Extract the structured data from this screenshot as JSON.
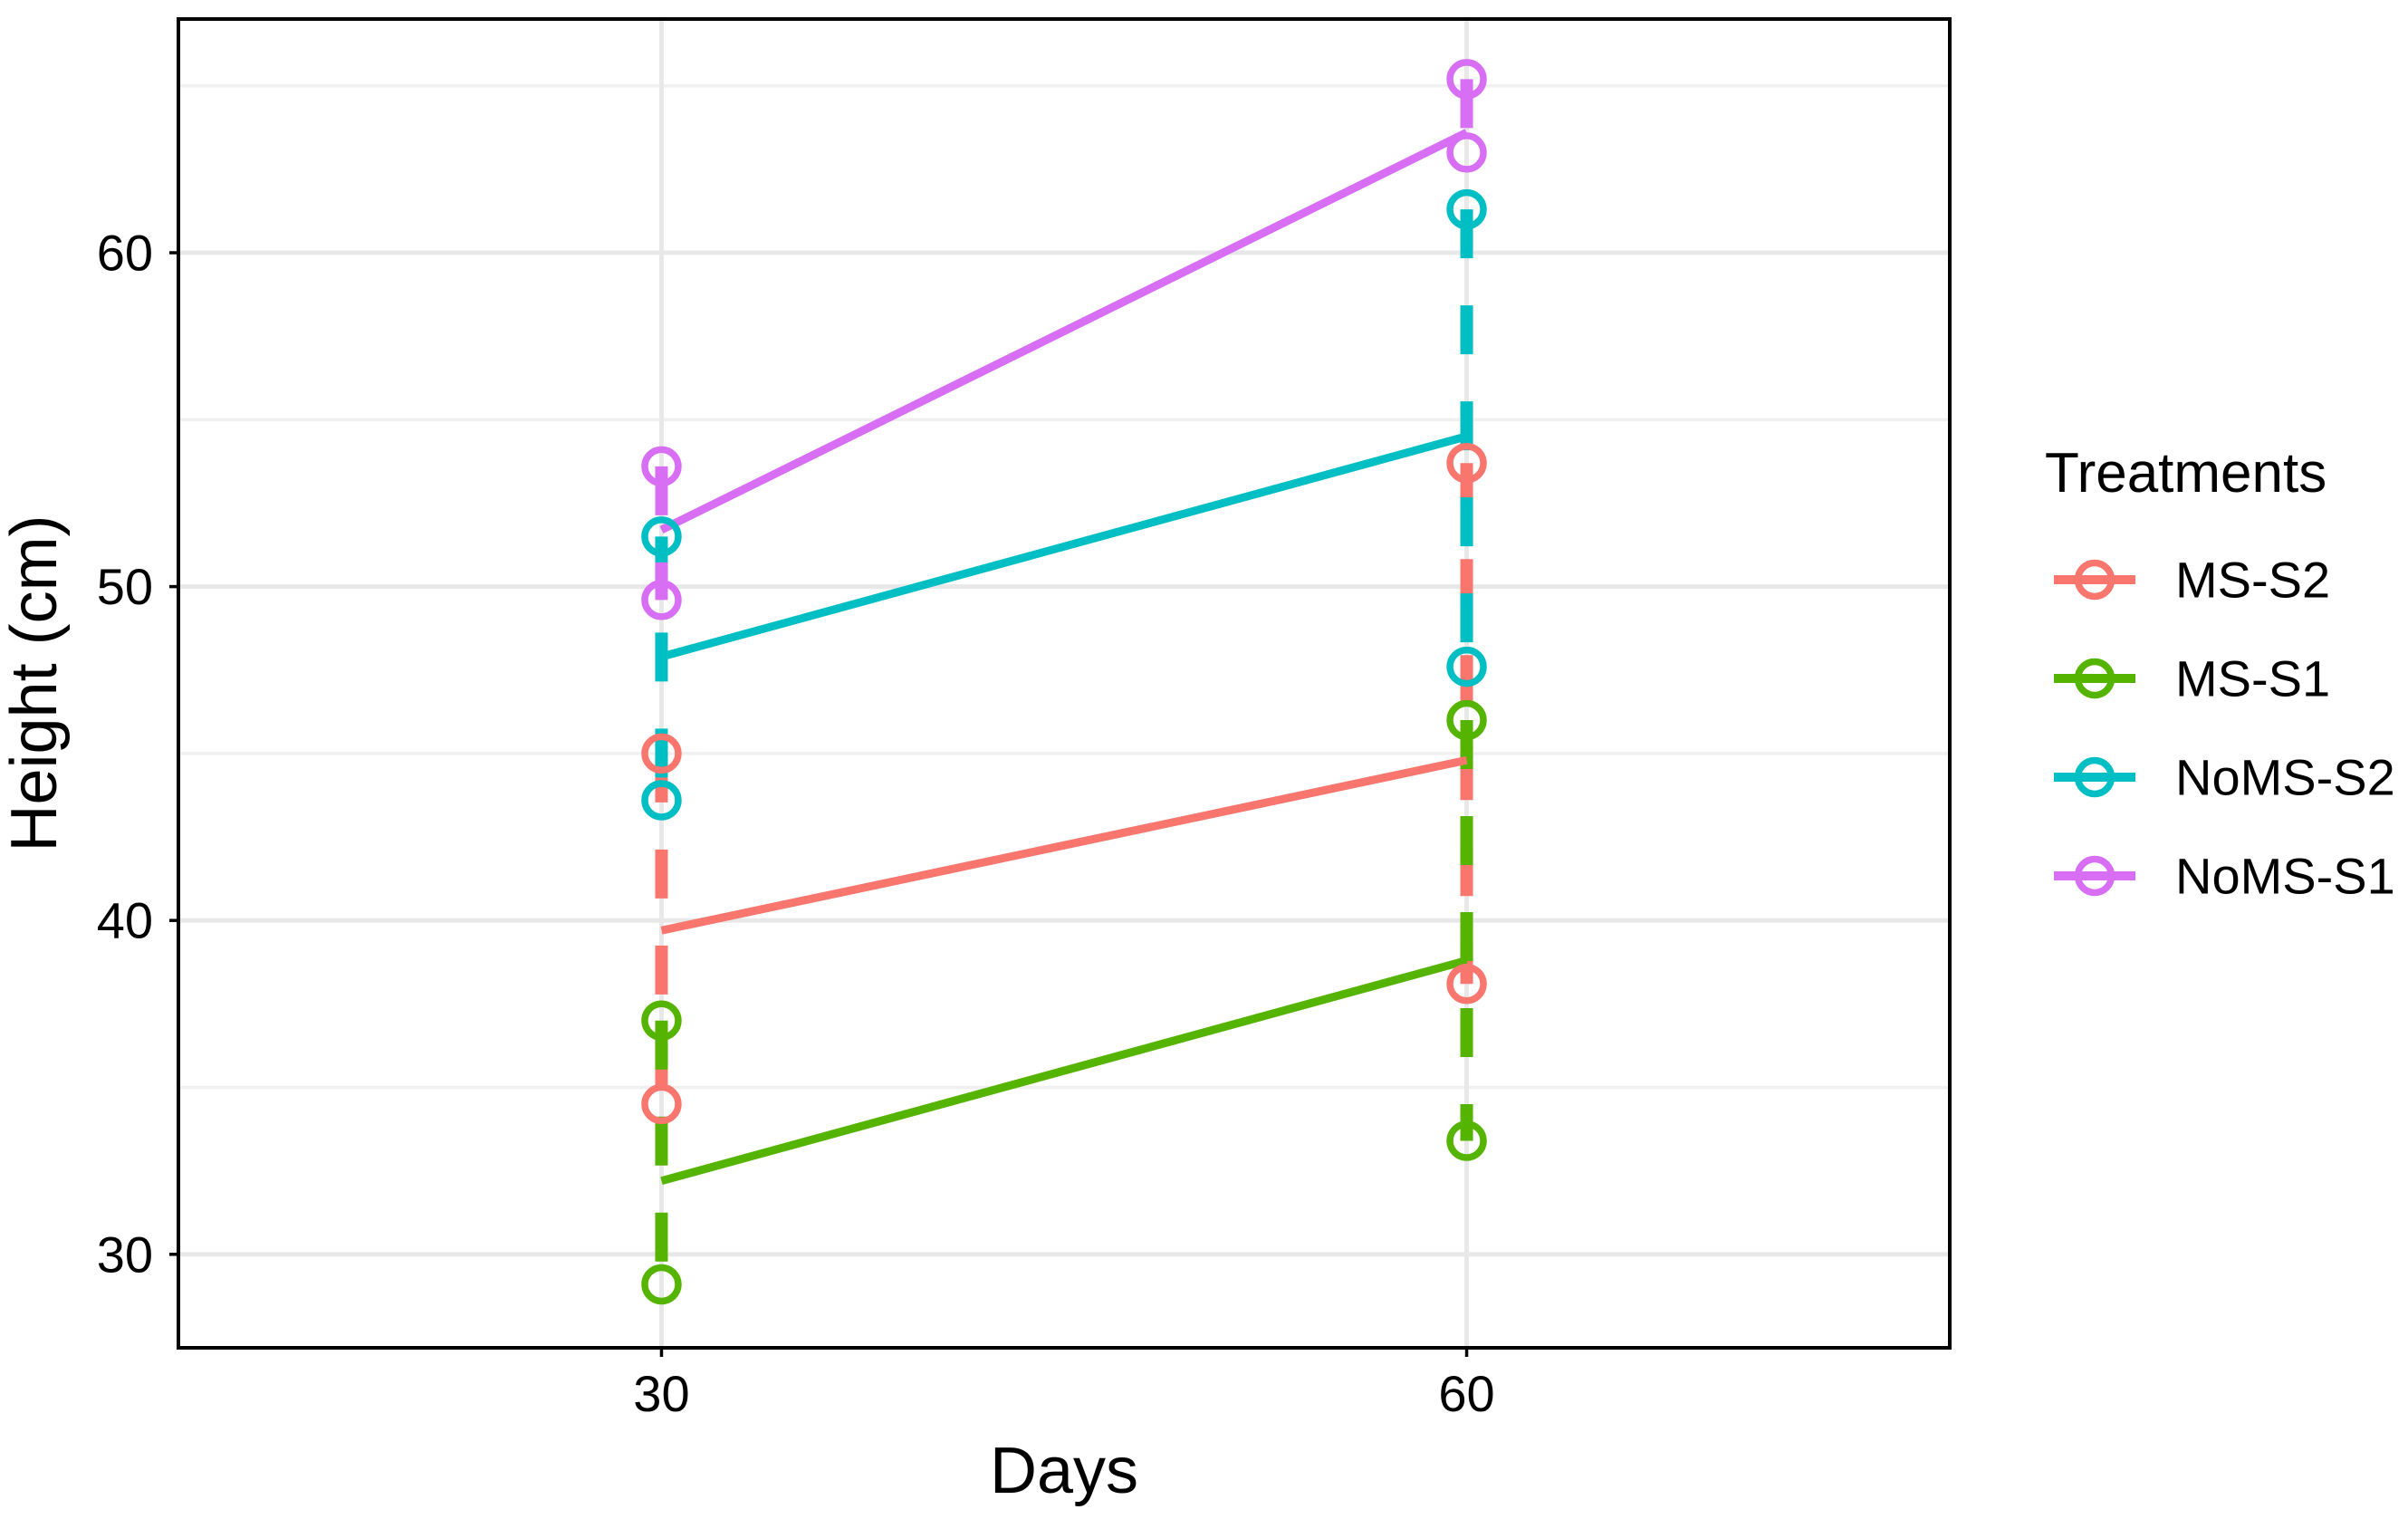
{
  "chart_data": {
    "type": "line",
    "title": "",
    "xlabel": "Days",
    "ylabel": "Height (cm)",
    "x_ticks": [
      30,
      60
    ],
    "y_ticks": [
      30,
      40,
      50,
      60
    ],
    "y_minor_ticks": [
      35,
      45,
      55,
      65
    ],
    "xlim": [
      12,
      78
    ],
    "ylim": [
      27.2,
      67.0
    ],
    "grid": true,
    "background_color": "#FFFFFF",
    "panel_border_color": "#000000",
    "grid_major_color": "#E8E8E8",
    "grid_minor_color": "#F0F0F0",
    "legend": {
      "title": "Treatments",
      "position": "right",
      "entries": [
        "MS-S2",
        "MS-S1",
        "NoMS-S2",
        "NoMS-S1"
      ]
    },
    "series": [
      {
        "name": "MS-S2",
        "color": "#F8766D",
        "x": [
          30,
          60
        ],
        "means": [
          39.7,
          44.8
        ],
        "points": [
          [
            45.0,
            34.5
          ],
          [
            53.7,
            38.1
          ]
        ],
        "range": [
          [
            34.5,
            45.0
          ],
          [
            38.1,
            53.7
          ]
        ]
      },
      {
        "name": "MS-S1",
        "color": "#55B400",
        "x": [
          30,
          60
        ],
        "means": [
          32.2,
          38.8
        ],
        "points": [
          [
            37.0,
            29.1
          ],
          [
            46.0,
            33.4
          ]
        ],
        "range": [
          [
            29.1,
            37.0
          ],
          [
            33.4,
            46.0
          ]
        ]
      },
      {
        "name": "NoMS-S2",
        "color": "#00BFC4",
        "x": [
          30,
          60
        ],
        "means": [
          47.9,
          54.5
        ],
        "points": [
          [
            51.5,
            43.6
          ],
          [
            61.3,
            47.6
          ]
        ],
        "range": [
          [
            43.6,
            51.5
          ],
          [
            47.6,
            61.3
          ]
        ]
      },
      {
        "name": "NoMS-S1",
        "color": "#D86EF3",
        "x": [
          30,
          60
        ],
        "means": [
          51.7,
          63.6
        ],
        "points": [
          [
            53.6,
            49.6
          ],
          [
            65.2,
            63.0
          ]
        ],
        "range": [
          [
            49.6,
            53.6
          ],
          [
            63.0,
            65.2
          ]
        ]
      }
    ]
  }
}
